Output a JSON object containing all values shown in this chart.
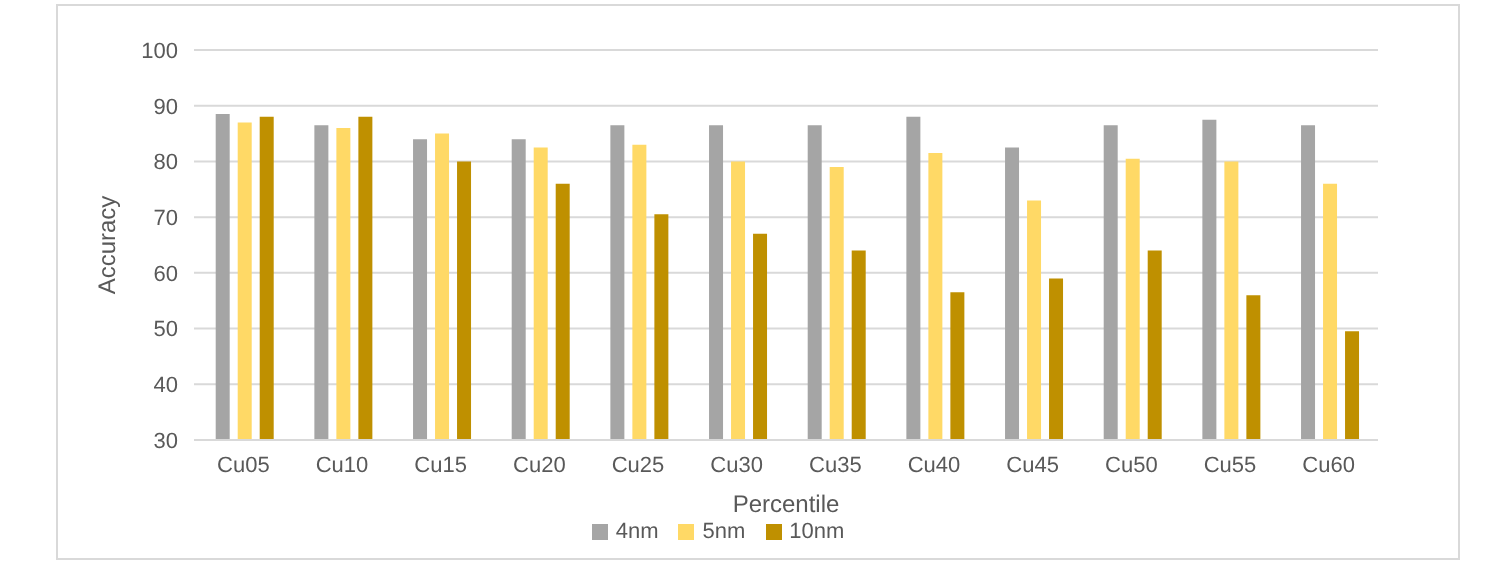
{
  "chart_data": {
    "type": "bar",
    "xlabel": "Percentile",
    "ylabel": "Accuracy",
    "categories": [
      "Cu05",
      "Cu10",
      "Cu15",
      "Cu20",
      "Cu25",
      "Cu30",
      "Cu35",
      "Cu40",
      "Cu45",
      "Cu50",
      "Cu55",
      "Cu60"
    ],
    "series": [
      {
        "name": "4nm",
        "color": "#a5a5a5",
        "values": [
          88.5,
          86.5,
          84,
          84,
          86.5,
          86.5,
          86.5,
          88,
          82.5,
          86.5,
          87.5,
          86.5
        ]
      },
      {
        "name": "5nm",
        "color": "#ffd966",
        "values": [
          87,
          86,
          85,
          82.5,
          83,
          80,
          79,
          81.5,
          73,
          80.5,
          80,
          76
        ]
      },
      {
        "name": "10nm",
        "color": "#bf9000",
        "values": [
          88,
          88,
          80,
          76,
          70.5,
          67,
          64,
          56.5,
          59,
          64,
          56,
          49.5
        ]
      }
    ],
    "ylim": [
      30,
      100
    ],
    "yticks": [
      30,
      40,
      50,
      60,
      70,
      80,
      90,
      100
    ],
    "grid": "y",
    "legend": "bottom"
  }
}
